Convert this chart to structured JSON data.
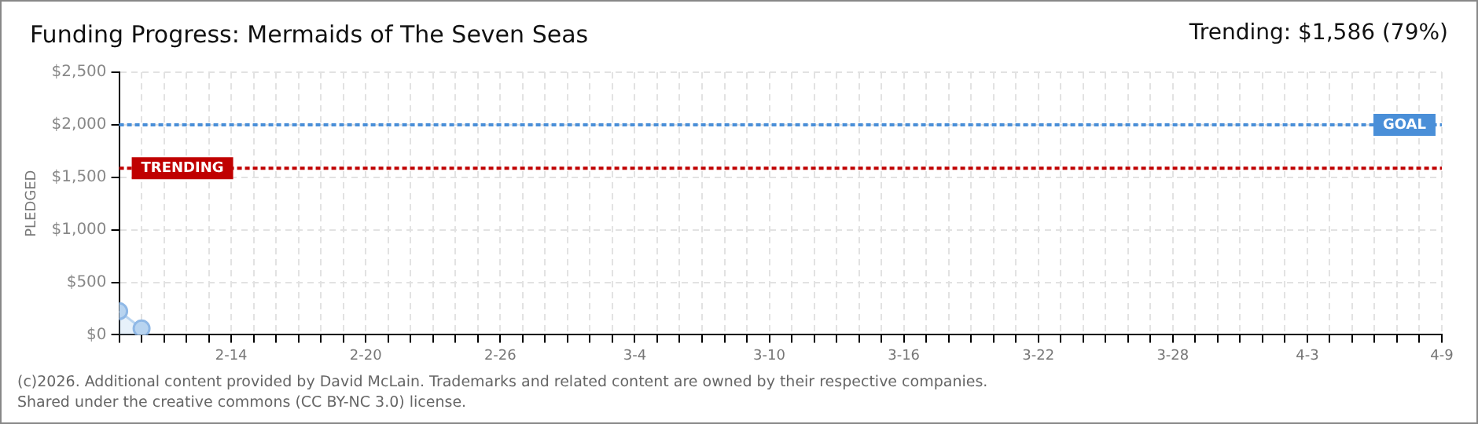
{
  "chart_data": {
    "type": "area",
    "title": "Funding Progress: Mermaids of The Seven Seas",
    "subtitle": "Trending: $1,586 (79%)",
    "ylabel": "PLEDGED",
    "x": [
      "--02-09",
      "--02-10"
    ],
    "series": [
      {
        "color": "#b8d4f0",
        "values": [
          225,
          60
        ]
      }
    ],
    "xlim": [
      "--02-09",
      "--04-09"
    ],
    "xticks": [
      {
        "value": "--02-09",
        "label": null
      },
      {
        "value": "--02-10",
        "label": null
      },
      {
        "value": "--02-11",
        "label": null
      },
      {
        "value": "--02-12",
        "label": null
      },
      {
        "value": "--02-13",
        "label": null
      },
      {
        "value": "--02-14",
        "label": "2-14"
      },
      {
        "value": "--02-15",
        "label": null
      },
      {
        "value": "--02-16",
        "label": null
      },
      {
        "value": "--02-17",
        "label": null
      },
      {
        "value": "--02-18",
        "label": null
      },
      {
        "value": "--02-19",
        "label": null
      },
      {
        "value": "--02-20",
        "label": "2-20"
      },
      {
        "value": "--02-21",
        "label": null
      },
      {
        "value": "--02-22",
        "label": null
      },
      {
        "value": "--02-23",
        "label": null
      },
      {
        "value": "--02-24",
        "label": null
      },
      {
        "value": "--02-25",
        "label": null
      },
      {
        "value": "--02-26",
        "label": "2-26"
      },
      {
        "value": "--02-27",
        "label": null
      },
      {
        "value": "--02-28",
        "label": null
      },
      {
        "value": "--03-01",
        "label": null
      },
      {
        "value": "--03-02",
        "label": null
      },
      {
        "value": "--03-03",
        "label": null
      },
      {
        "value": "--03-04",
        "label": "3-4"
      },
      {
        "value": "--03-05",
        "label": null
      },
      {
        "value": "--03-06",
        "label": null
      },
      {
        "value": "--03-07",
        "label": null
      },
      {
        "value": "--03-08",
        "label": null
      },
      {
        "value": "--03-09",
        "label": null
      },
      {
        "value": "--03-10",
        "label": "3-10"
      },
      {
        "value": "--03-11",
        "label": null
      },
      {
        "value": "--03-12",
        "label": null
      },
      {
        "value": "--03-13",
        "label": null
      },
      {
        "value": "--03-14",
        "label": null
      },
      {
        "value": "--03-15",
        "label": null
      },
      {
        "value": "--03-16",
        "label": "3-16"
      },
      {
        "value": "--03-17",
        "label": null
      },
      {
        "value": "--03-18",
        "label": null
      },
      {
        "value": "--03-19",
        "label": null
      },
      {
        "value": "--03-20",
        "label": null
      },
      {
        "value": "--03-21",
        "label": null
      },
      {
        "value": "--03-22",
        "label": "3-22"
      },
      {
        "value": "--03-23",
        "label": null
      },
      {
        "value": "--03-24",
        "label": null
      },
      {
        "value": "--03-25",
        "label": null
      },
      {
        "value": "--03-26",
        "label": null
      },
      {
        "value": "--03-27",
        "label": null
      },
      {
        "value": "--03-28",
        "label": "3-28"
      },
      {
        "value": "--03-29",
        "label": null
      },
      {
        "value": "--03-30",
        "label": null
      },
      {
        "value": "--03-31",
        "label": null
      },
      {
        "value": "--04-01",
        "label": null
      },
      {
        "value": "--04-02",
        "label": null
      },
      {
        "value": "--04-03",
        "label": "4-3"
      },
      {
        "value": "--04-04",
        "label": null
      },
      {
        "value": "--04-05",
        "label": null
      },
      {
        "value": "--04-06",
        "label": null
      },
      {
        "value": "--04-07",
        "label": null
      },
      {
        "value": "--04-08",
        "label": null
      },
      {
        "value": "--04-09",
        "label": "4-9"
      }
    ],
    "ylim": [
      0,
      2500
    ],
    "yticks": [
      {
        "value": 0,
        "label": "$0"
      },
      {
        "value": 500,
        "label": "$500"
      },
      {
        "value": 1000,
        "label": "$1,000"
      },
      {
        "value": 1500,
        "label": "$1,500"
      },
      {
        "value": 2000,
        "label": "$2,000"
      },
      {
        "value": 2500,
        "label": "$2,500"
      }
    ],
    "ref_lines": [
      {
        "axis": "y",
        "value": 2000,
        "label": "GOAL",
        "color": "#4a8fd8",
        "line_style": "dotted"
      },
      {
        "axis": "y",
        "value": 1586,
        "label": "TRENDING",
        "color": "#c00000",
        "line_style": "dotted"
      }
    ],
    "grid": true,
    "legend": false,
    "marker": "circle",
    "annotations": [
      "(c)2026. Additional content provided by David McLain. Trademarks and related content are owned by their respective companies.",
      "Shared under the creative commons (CC BY-NC 3.0) license."
    ]
  }
}
